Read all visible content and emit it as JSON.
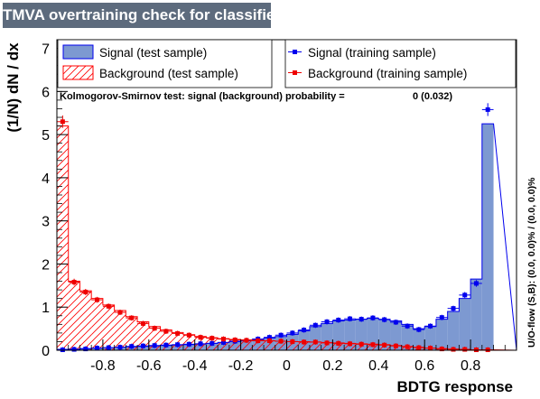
{
  "chart_data": {
    "type": "histogram",
    "title": "TMVA overtraining check for classifier: BDTG",
    "xlabel": "BDTG response",
    "ylabel": "(1/N) dN / dx",
    "xlim": [
      -1.0,
      1.0
    ],
    "ylim": [
      0,
      7.2
    ],
    "xticks": [
      "-0.8",
      "-0.6",
      "-0.4",
      "-0.2",
      "0",
      "0.2",
      "0.4",
      "0.6",
      "0.8"
    ],
    "xtick_values": [
      -0.8,
      -0.6,
      -0.4,
      -0.2,
      0,
      0.2,
      0.4,
      0.6,
      0.8
    ],
    "yticks": [
      "0",
      "1",
      "2",
      "3",
      "4",
      "5",
      "6",
      "7"
    ],
    "ytick_values": [
      0,
      1,
      2,
      3,
      4,
      5,
      6,
      7
    ],
    "legend": {
      "signal_test": "Signal (test sample)",
      "background_test": "Background (test sample)",
      "signal_train": "Signal (training sample)",
      "background_train": "Background (training sample)"
    },
    "ks_text": "Kolmogorov-Smirnov test: signal (background) probability =",
    "ks_value": "0 (0.032)",
    "overflow_text": "U/O-flow (S,B): (0.0, 0.0)% / (0.0, 0.0)%",
    "bins": {
      "start": -1.0,
      "width": 0.05
    },
    "series": [
      {
        "name": "Signal (test sample)",
        "style": "filled",
        "color": "#7d99d1",
        "values": [
          0.02,
          0.03,
          0.04,
          0.05,
          0.06,
          0.07,
          0.08,
          0.09,
          0.1,
          0.11,
          0.12,
          0.13,
          0.14,
          0.16,
          0.18,
          0.2,
          0.22,
          0.25,
          0.28,
          0.32,
          0.37,
          0.45,
          0.55,
          0.62,
          0.68,
          0.7,
          0.72,
          0.74,
          0.72,
          0.68,
          0.6,
          0.5,
          0.55,
          0.72,
          0.9,
          1.2,
          1.65,
          5.25
        ]
      },
      {
        "name": "Background (test sample)",
        "style": "hatched",
        "color": "#ff0000",
        "values": [
          5.2,
          1.6,
          1.38,
          1.2,
          1.05,
          0.92,
          0.78,
          0.66,
          0.55,
          0.47,
          0.41,
          0.36,
          0.32,
          0.29,
          0.27,
          0.25,
          0.24,
          0.23,
          0.22,
          0.21,
          0.2,
          0.2,
          0.19,
          0.18,
          0.17,
          0.16,
          0.15,
          0.14,
          0.13,
          0.11,
          0.09,
          0.07,
          0.05,
          0.04,
          0.03,
          0.02,
          0.01,
          0.01
        ]
      },
      {
        "name": "Signal (training sample)",
        "style": "points",
        "color": "#0000ee",
        "values": [
          0.01,
          0.02,
          0.03,
          0.05,
          0.06,
          0.07,
          0.09,
          0.1,
          0.11,
          0.12,
          0.13,
          0.14,
          0.15,
          0.16,
          0.18,
          0.21,
          0.23,
          0.26,
          0.3,
          0.35,
          0.4,
          0.47,
          0.58,
          0.66,
          0.7,
          0.73,
          0.72,
          0.75,
          0.71,
          0.65,
          0.56,
          0.48,
          0.56,
          0.76,
          0.97,
          1.28,
          1.55,
          5.58
        ]
      },
      {
        "name": "Background (training sample)",
        "style": "points",
        "color": "#ee0000",
        "values": [
          5.3,
          1.58,
          1.35,
          1.17,
          1.02,
          0.88,
          0.75,
          0.62,
          0.51,
          0.44,
          0.39,
          0.35,
          0.3,
          0.28,
          0.26,
          0.24,
          0.23,
          0.22,
          0.22,
          0.21,
          0.2,
          0.19,
          0.19,
          0.17,
          0.16,
          0.15,
          0.14,
          0.13,
          0.12,
          0.1,
          0.08,
          0.06,
          0.05,
          0.03,
          0.02,
          0.02,
          0.01,
          0.01
        ]
      }
    ]
  }
}
